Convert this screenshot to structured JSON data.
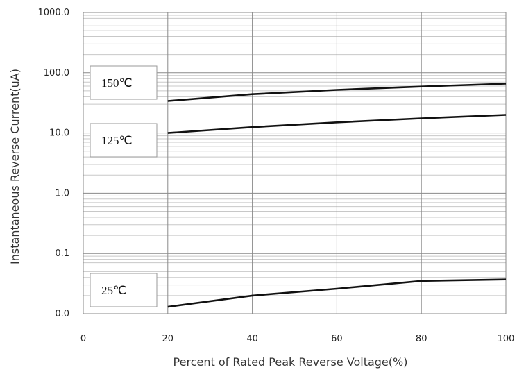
{
  "chart_data": {
    "type": "line",
    "xlabel": "Percent of Rated Peak Reverse Voltage(%)",
    "ylabel": "Instantaneous Reverse Current(uA)",
    "xlim": [
      0,
      100
    ],
    "ylim": [
      0.01,
      1000
    ],
    "yscale": "log",
    "grid": true,
    "x_ticks": [
      0,
      20,
      40,
      60,
      80,
      100
    ],
    "x_tick_labels": [
      "0",
      "20",
      "40",
      "60",
      "80",
      "100"
    ],
    "y_ticks": [
      0.01,
      0.1,
      1,
      10,
      100,
      1000
    ],
    "y_tick_labels": [
      "0.0",
      "0.1",
      "1.0",
      "10.0",
      "100.0",
      "1000.0"
    ],
    "series": [
      {
        "name": "150℃",
        "x": [
          20,
          40,
          60,
          80,
          100
        ],
        "y": [
          34,
          44,
          52,
          59,
          66
        ],
        "color": "#111111"
      },
      {
        "name": "125℃",
        "x": [
          20,
          40,
          60,
          80,
          100
        ],
        "y": [
          10,
          12.5,
          15,
          17.5,
          20
        ],
        "color": "#111111"
      },
      {
        "name": "25℃",
        "x": [
          20,
          40,
          60,
          80,
          100
        ],
        "y": [
          0.013,
          0.02,
          0.026,
          0.035,
          0.037
        ],
        "color": "#111111"
      }
    ]
  }
}
